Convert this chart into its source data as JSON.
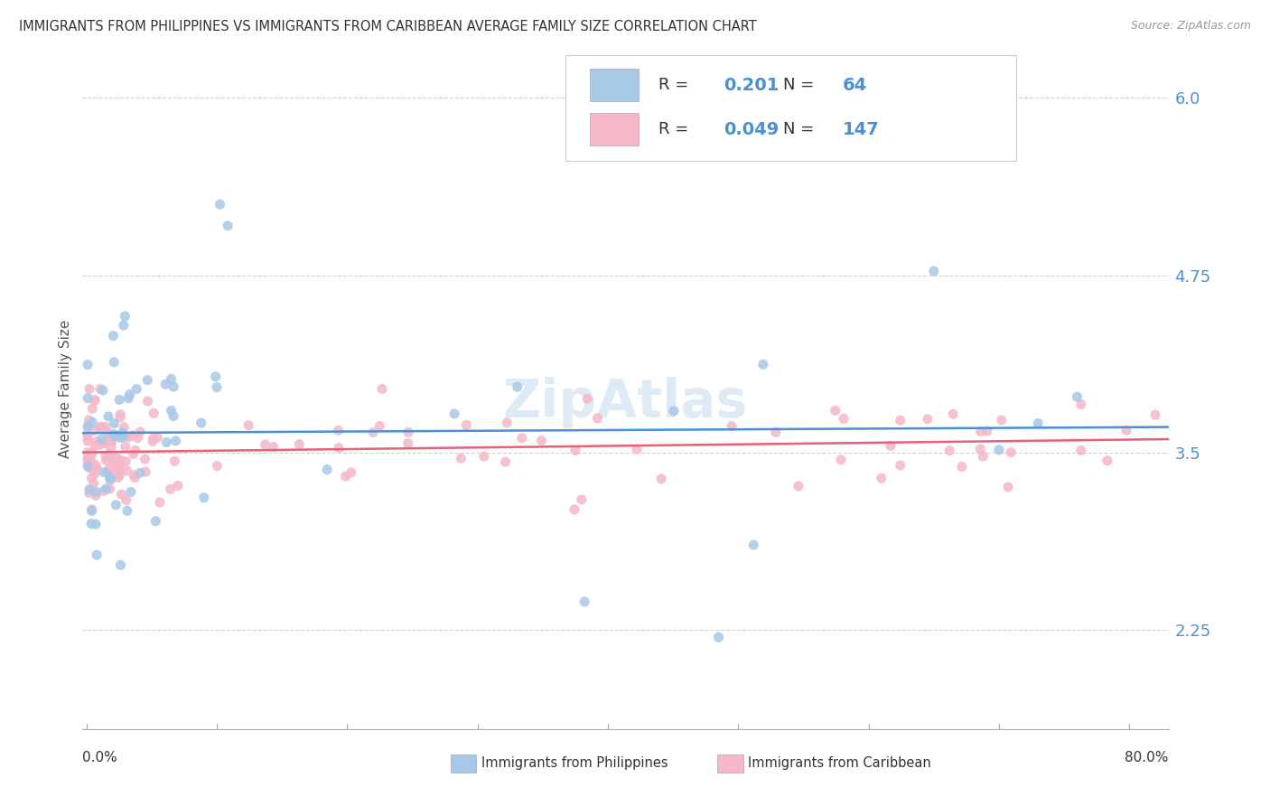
{
  "title": "IMMIGRANTS FROM PHILIPPINES VS IMMIGRANTS FROM CARIBBEAN AVERAGE FAMILY SIZE CORRELATION CHART",
  "source": "Source: ZipAtlas.com",
  "ylabel": "Average Family Size",
  "yticks": [
    2.25,
    3.5,
    4.75,
    6.0
  ],
  "ymin": 1.55,
  "ymax": 6.35,
  "xmin": -0.003,
  "xmax": 0.83,
  "philippines_color": "#a8c8e8",
  "caribbean_color": "#f5b8c8",
  "philippines_line_color": "#4a90d9",
  "caribbean_line_color": "#e8607a",
  "legend_R_philippines": "0.201",
  "legend_N_philippines": "64",
  "legend_R_caribbean": "0.049",
  "legend_N_caribbean": "147",
  "watermark": "ZipAtlas",
  "watermark_color": "#c8ddf0",
  "grid_color": "#cccccc",
  "title_color": "#333333",
  "source_color": "#999999",
  "ylabel_color": "#555555"
}
